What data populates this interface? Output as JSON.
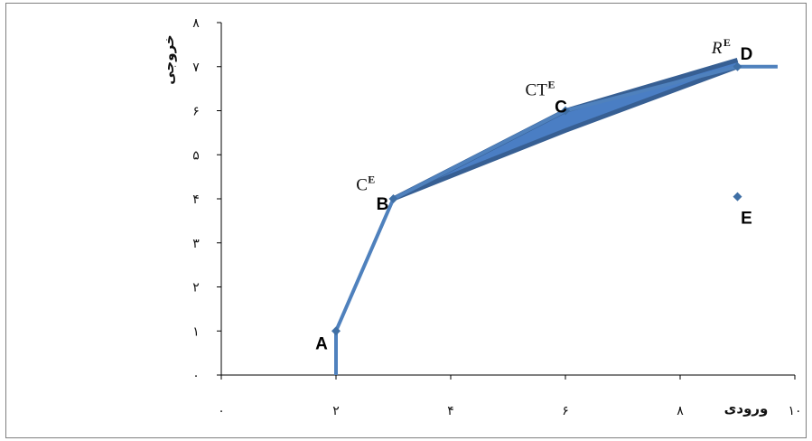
{
  "chart_data": {
    "type": "line",
    "xlabel": "ورودی",
    "ylabel": "خروجی",
    "xlim": [
      0,
      10
    ],
    "ylim": [
      0,
      8
    ],
    "x_ticks": [
      "۰",
      "۲",
      "۴",
      "۶",
      "۸",
      "۱۰"
    ],
    "y_ticks": [
      "۰",
      "۱",
      "۲",
      "۳",
      "۴",
      "۵",
      "۶",
      "۷",
      "۸"
    ],
    "grid": false,
    "colors": {
      "frontier": "#4f81bd",
      "facet": "#375f93",
      "facet_fill": "#4a7ec4",
      "points": "#3f6fa5"
    },
    "frontier": [
      {
        "x": 2,
        "y": 0
      },
      {
        "x": 2,
        "y": 1
      },
      {
        "x": 3,
        "y": 4
      },
      {
        "x": 6,
        "y": 6
      },
      {
        "x": 9,
        "y": 7
      },
      {
        "x": 9.7,
        "y": 7
      }
    ],
    "facet_upper": [
      {
        "x": 3,
        "y": 4
      },
      {
        "x": 6,
        "y": 6
      },
      {
        "x": 9,
        "y": 7.15
      }
    ],
    "facet_lower": [
      {
        "x": 3,
        "y": 4
      },
      {
        "x": 6,
        "y": 5.55
      },
      {
        "x": 9,
        "y": 7
      }
    ],
    "points": [
      {
        "name": "A",
        "x": 2,
        "y": 1
      },
      {
        "name": "B",
        "x": 3,
        "y": 4
      },
      {
        "name": "C",
        "x": 6,
        "y": 6
      },
      {
        "name": "D",
        "x": 9,
        "y": 7
      },
      {
        "name": "E",
        "x": 9,
        "y": 4.05
      }
    ],
    "annotations": [
      {
        "base": "C",
        "sup": "E",
        "x": 2.35,
        "y": 4.2
      },
      {
        "base": "CT",
        "sup": "E",
        "x": 5.3,
        "y": 6.35
      },
      {
        "base": "R",
        "sup": "E",
        "x": 8.55,
        "y": 7.3
      }
    ]
  }
}
